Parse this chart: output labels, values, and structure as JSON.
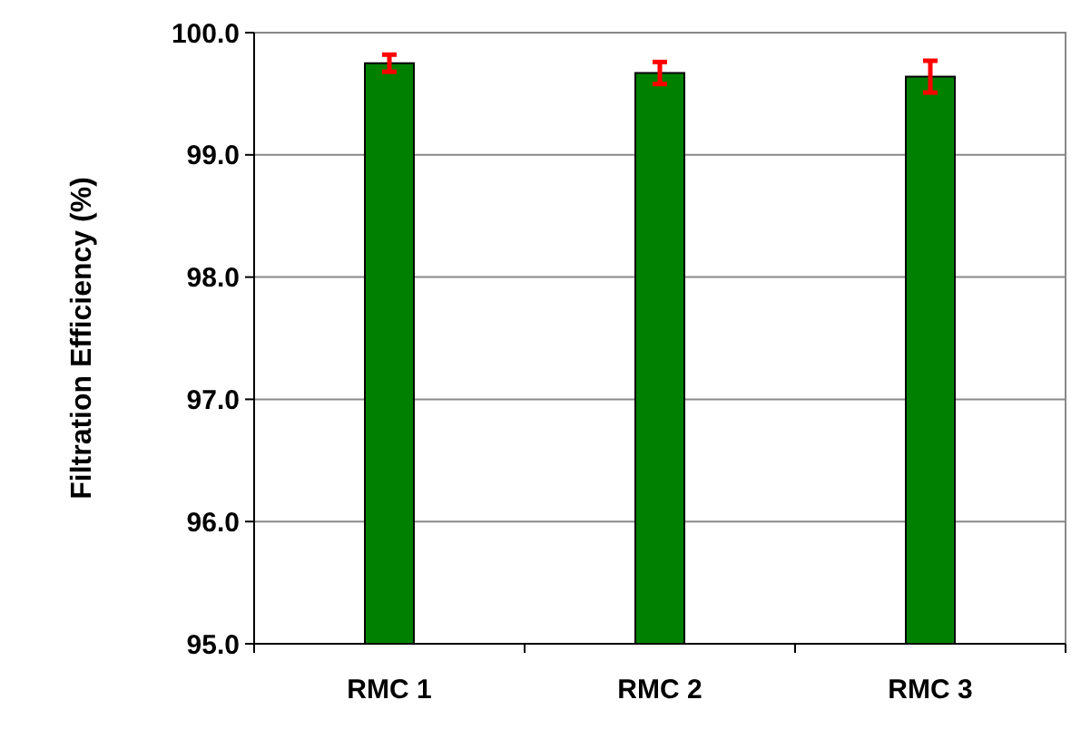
{
  "chart_data": {
    "type": "bar",
    "ylabel": "Filtration Efficiency (%)",
    "categories": [
      "RMC 1",
      "RMC 2",
      "RMC 3"
    ],
    "values": [
      99.75,
      99.67,
      99.64
    ],
    "errors": [
      0.07,
      0.09,
      0.13
    ],
    "color": "#008000",
    "ylim": [
      95,
      100
    ],
    "yticks": [
      {
        "value": 95,
        "label": "95.0"
      },
      {
        "value": 96,
        "label": "96.0"
      },
      {
        "value": 97,
        "label": "97.0"
      },
      {
        "value": 98,
        "label": "98.0"
      },
      {
        "value": 99,
        "label": "99.0"
      },
      {
        "value": 100,
        "label": "100.0"
      }
    ],
    "grid": "y"
  }
}
